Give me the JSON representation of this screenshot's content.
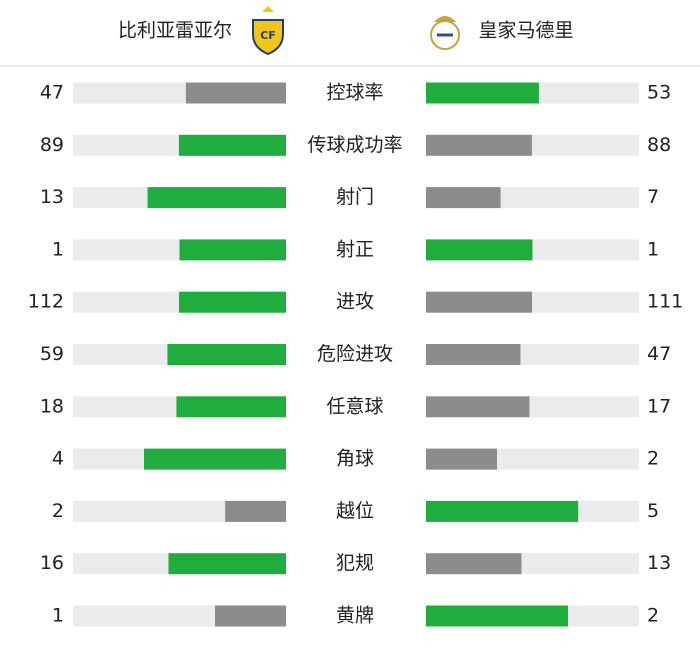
{
  "header": {
    "home": "比利亚雷亚尔",
    "away": "皇家马德里"
  },
  "stats": [
    {
      "label": "控球率",
      "home": 47,
      "away": 53
    },
    {
      "label": "传球成功率",
      "home": 89,
      "away": 88
    },
    {
      "label": "射门",
      "home": 13,
      "away": 7
    },
    {
      "label": "射正",
      "home": 1,
      "away": 1
    },
    {
      "label": "进攻",
      "home": 112,
      "away": 111
    },
    {
      "label": "危险进攻",
      "home": 59,
      "away": 47
    },
    {
      "label": "任意球",
      "home": 18,
      "away": 17
    },
    {
      "label": "角球",
      "home": 4,
      "away": 2
    },
    {
      "label": "越位",
      "home": 2,
      "away": 5
    },
    {
      "label": "犯规",
      "home": 16,
      "away": 13
    },
    {
      "label": "黄牌",
      "home": 1,
      "away": 2
    }
  ]
}
